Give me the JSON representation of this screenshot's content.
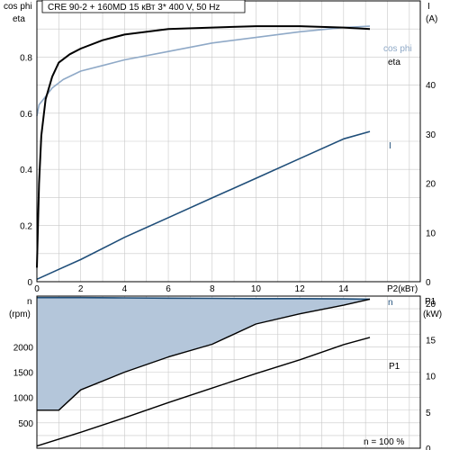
{
  "chart_data": [
    {
      "type": "line",
      "title": "CRE 90-2 + 160MD    15 кВт    3* 400 V, 50 Hz",
      "xlabel": "P2(кВт)",
      "ylabel_left": [
        "cos phi",
        "eta"
      ],
      "ylabel_right": [
        "I",
        "(A)"
      ],
      "xlim": [
        0,
        17.5
      ],
      "ylim_left": [
        0,
        1
      ],
      "ylim_right": [
        0,
        57
      ],
      "x_ticks": [
        "0",
        "2",
        "4",
        "6",
        "8",
        "10",
        "12",
        "14"
      ],
      "y_ticks_left": [
        "0",
        "0.2",
        "0.4",
        "0.6",
        "0.8"
      ],
      "y_ticks_right": [
        "0",
        "10",
        "20",
        "30",
        "40"
      ],
      "grid": true,
      "series": [
        {
          "name": "cos phi",
          "color": "#8fa9c7",
          "axis": "left",
          "x": [
            0,
            0.1,
            0.3,
            0.7,
            1.2,
            2,
            3,
            4,
            6,
            8,
            10,
            12,
            14,
            15.2
          ],
          "y": [
            0.59,
            0.63,
            0.65,
            0.69,
            0.72,
            0.75,
            0.77,
            0.79,
            0.82,
            0.85,
            0.87,
            0.89,
            0.905,
            0.91
          ]
        },
        {
          "name": "eta",
          "color": "#000000",
          "axis": "left",
          "x": [
            0,
            0.1,
            0.2,
            0.4,
            0.7,
            1,
            1.5,
            2,
            3,
            4,
            6,
            8,
            10,
            12,
            14,
            15.2
          ],
          "y": [
            0.05,
            0.35,
            0.52,
            0.65,
            0.73,
            0.78,
            0.81,
            0.83,
            0.86,
            0.88,
            0.9,
            0.905,
            0.91,
            0.91,
            0.905,
            0.9
          ]
        },
        {
          "name": "I",
          "color": "#1f4e79",
          "axis": "right",
          "x": [
            0,
            1,
            2,
            4,
            6,
            8,
            10,
            12,
            14,
            15.2
          ],
          "y": [
            0.5,
            2.5,
            4.5,
            9,
            13,
            17,
            21,
            25,
            29,
            30.5
          ]
        }
      ]
    },
    {
      "type": "area",
      "title": "",
      "xlabel": "",
      "ylabel_left": [
        "n",
        "(rpm)"
      ],
      "ylabel_right": [
        "P1",
        "(kW)"
      ],
      "xlim": [
        0,
        17.5
      ],
      "ylim_left": [
        0,
        3000
      ],
      "ylim_right": [
        0,
        21
      ],
      "y_ticks_left": [
        "500",
        "1000",
        "1500",
        "2000"
      ],
      "y_ticks_right": [
        "0",
        "5",
        "10",
        "15",
        "20"
      ],
      "grid": true,
      "annotation": "n   = 100 %",
      "series": [
        {
          "name": "n",
          "color": "#1f4e79",
          "axis": "left",
          "x": [
            0,
            2,
            4,
            6,
            8,
            10,
            12,
            13,
            14,
            15.2
          ],
          "y": [
            2970,
            2970,
            2965,
            2960,
            2955,
            2950,
            2950,
            2948,
            2945,
            2940
          ]
        },
        {
          "name": "",
          "color": "#000000",
          "axis": "left",
          "x": [
            0,
            1,
            2,
            4,
            6,
            8,
            10,
            12,
            14,
            15.2
          ],
          "y": [
            750,
            750,
            1150,
            1500,
            1800,
            2050,
            2450,
            2650,
            2820,
            2940
          ]
        },
        {
          "name": "P1",
          "color": "#000000",
          "axis": "right",
          "x": [
            0,
            2,
            4,
            6,
            8,
            10,
            12,
            14,
            15.2
          ],
          "y": [
            0.3,
            2.2,
            4.2,
            6.3,
            8.3,
            10.3,
            12.2,
            14.3,
            15.3
          ]
        }
      ]
    }
  ]
}
